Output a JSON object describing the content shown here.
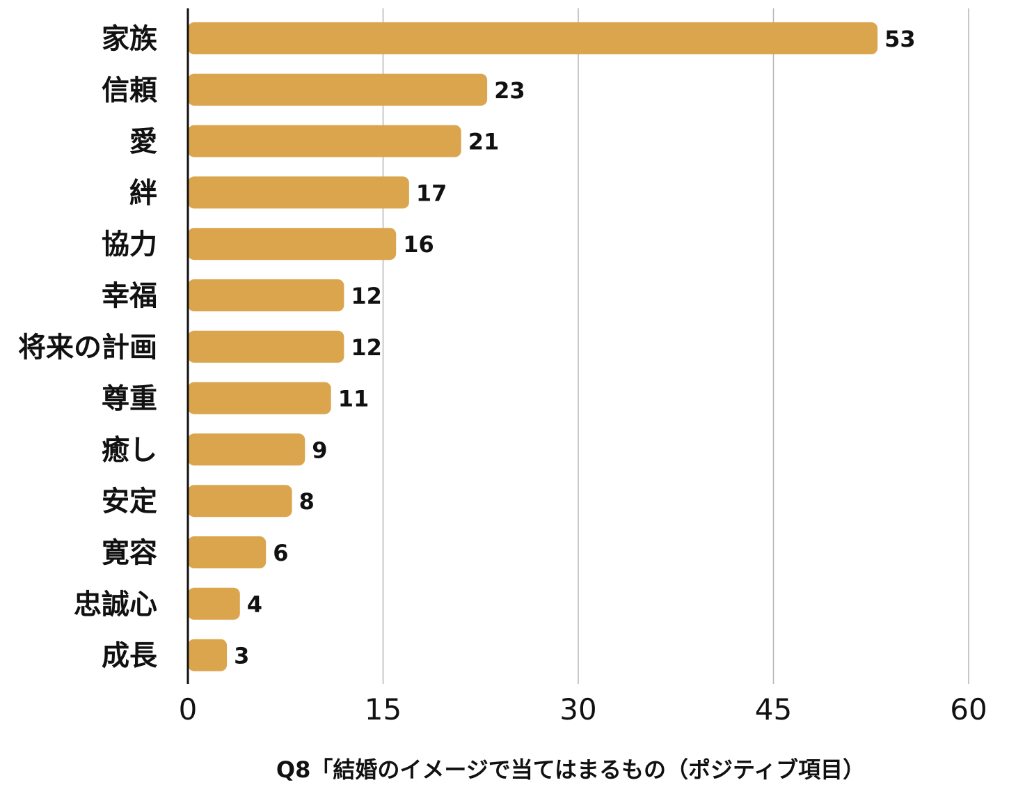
{
  "chart_data": {
    "type": "bar",
    "orientation": "horizontal",
    "categories": [
      "家族",
      "信頼",
      "愛",
      "絆",
      "協力",
      "幸福",
      "将来の計画",
      "尊重",
      "癒し",
      "安定",
      "寛容",
      "忠誠心",
      "成長"
    ],
    "values": [
      53,
      23,
      21,
      17,
      16,
      12,
      12,
      11,
      9,
      8,
      6,
      4,
      3
    ],
    "xlabel": "Q8「結婚のイメージで当てはまるもの（ポジティブ項目）",
    "ylabel": "",
    "xlim": [
      0,
      60
    ],
    "xticks": [
      0,
      15,
      30,
      45,
      60
    ],
    "grid": true,
    "data_labels": true,
    "bar_color": "#DBA54E"
  }
}
